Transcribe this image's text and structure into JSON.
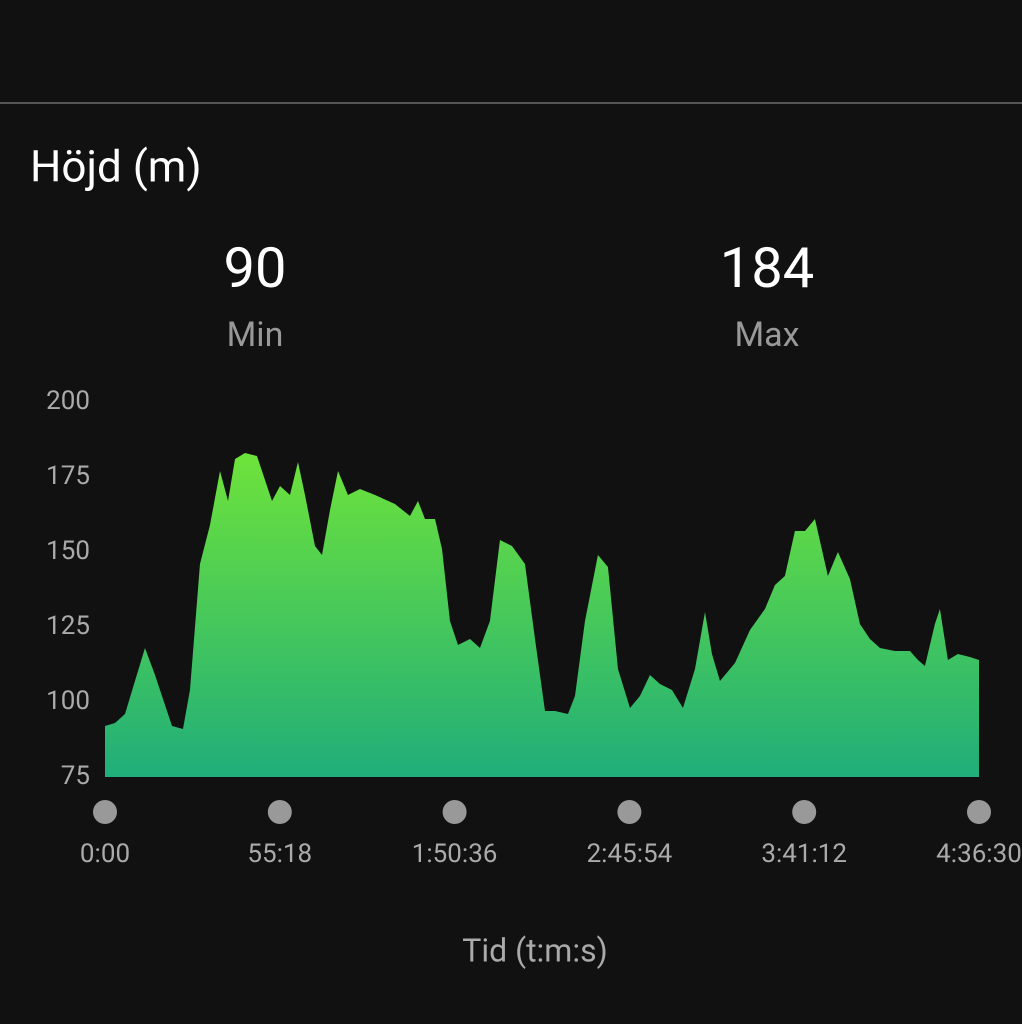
{
  "chart_data": {
    "type": "area",
    "title": "Höjd (m)",
    "stats": [
      {
        "value": 90,
        "label": "Min"
      },
      {
        "value": 184,
        "label": "Max"
      }
    ],
    "x": [
      0,
      190,
      380,
      569,
      759,
      949,
      1139,
      1272,
      1480,
      1613,
      1803,
      1993,
      2183,
      2335,
      2468,
      2657,
      2885,
      3037,
      3170,
      3322,
      3511,
      3663,
      3796,
      3986,
      4119,
      4271,
      4423,
      4612,
      4840,
      5125,
      5504,
      5789,
      5941,
      6074,
      6264,
      6397,
      6548,
      6700,
      6928,
      7118,
      7307,
      7497,
      7725,
      7972,
      8162,
      8352,
      8541,
      8788,
      8921,
      9111,
      9357,
      9547,
      9737,
      9965,
      10155,
      10344,
      10534,
      10762,
      10971,
      11199,
      11389,
      11521,
      11673,
      11958,
      12243,
      12527,
      12717,
      12906,
      13096,
      13286,
      13476,
      13722,
      13912,
      14140,
      14330,
      14520,
      14710,
      14994,
      15279,
      15431,
      15564,
      15753,
      15848,
      16000,
      16189,
      16417,
      16590
    ],
    "values": [
      92,
      93,
      96,
      107,
      118,
      109,
      99,
      92,
      91,
      104,
      146,
      159,
      177,
      167,
      181,
      183,
      182,
      174,
      167,
      172,
      169,
      180,
      169,
      152,
      149,
      164,
      177,
      169,
      171,
      169,
      166,
      162,
      167,
      161,
      161,
      151,
      127,
      119,
      121,
      118,
      127,
      154,
      152,
      146,
      121,
      97,
      97,
      96,
      102,
      127,
      149,
      145,
      111,
      98,
      102,
      109,
      106,
      104,
      98,
      111,
      130,
      116,
      107,
      113,
      124,
      131,
      139,
      142,
      157,
      157,
      161,
      142,
      150,
      141,
      126,
      121,
      118,
      117,
      117,
      114,
      112,
      126,
      131,
      114,
      116,
      115,
      114
    ],
    "colors": [
      "#6ee33a",
      "#20ae7a"
    ],
    "xlim": [
      0,
      16590
    ],
    "xticks": [
      {
        "value": 0,
        "label": "0:00"
      },
      {
        "value": 3318,
        "label": "55:18"
      },
      {
        "value": 6636,
        "label": "1:50:36"
      },
      {
        "value": 9954,
        "label": "2:45:54"
      },
      {
        "value": 13272,
        "label": "3:41:12"
      },
      {
        "value": 16590,
        "label": "4:36:30"
      }
    ],
    "ylim": [
      75,
      200
    ],
    "yticks": [
      75,
      100,
      125,
      150,
      175,
      200
    ],
    "x_label": "Tid (t:m:s)"
  }
}
